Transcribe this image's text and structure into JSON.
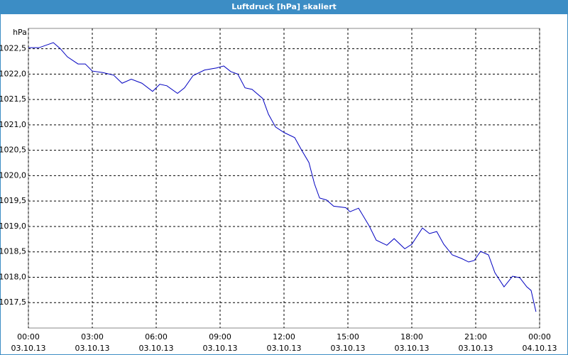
{
  "chart_data": {
    "type": "line",
    "title": "Luftdruck [hPa] skaliert",
    "y_unit": "hPa",
    "series": [
      {
        "color": "#0000c0",
        "x": [
          0,
          0.5,
          1.17,
          1.5,
          1.83,
          2.33,
          2.67,
          3,
          3.5,
          4,
          4.4,
          4.83,
          5.33,
          5.83,
          6.17,
          6.5,
          7,
          7.33,
          7.73,
          8.27,
          8.83,
          9.17,
          9.5,
          9.83,
          10.17,
          10.5,
          11,
          11.27,
          11.6,
          12,
          12.5,
          12.83,
          13.17,
          13.43,
          13.67,
          14,
          14.33,
          14.9,
          15.1,
          15.5,
          16,
          16.33,
          16.83,
          17.17,
          17.67,
          18,
          18.5,
          18.83,
          19.17,
          19.5,
          19.9,
          20.33,
          20.67,
          20.93,
          21.23,
          21.6,
          21.9,
          22.33,
          22.73,
          23.07,
          23.4,
          23.6,
          23.83
        ],
        "values": [
          1022.52,
          1022.52,
          1022.62,
          1022.5,
          1022.34,
          1022.2,
          1022.2,
          1022.06,
          1022.03,
          1021.98,
          1021.82,
          1021.9,
          1021.82,
          1021.66,
          1021.8,
          1021.77,
          1021.62,
          1021.73,
          1021.97,
          1022.08,
          1022.12,
          1022.16,
          1022.05,
          1022.0,
          1021.73,
          1021.7,
          1021.52,
          1021.21,
          1020.96,
          1020.85,
          1020.75,
          1020.5,
          1020.26,
          1019.84,
          1019.56,
          1019.52,
          1019.4,
          1019.37,
          1019.29,
          1019.36,
          1019.01,
          1018.73,
          1018.63,
          1018.76,
          1018.56,
          1018.65,
          1018.97,
          1018.86,
          1018.9,
          1018.65,
          1018.44,
          1018.37,
          1018.3,
          1018.33,
          1018.51,
          1018.44,
          1018.09,
          1017.81,
          1018.02,
          1017.99,
          1017.81,
          1017.74,
          1017.32
        ]
      }
    ],
    "xlim": [
      0,
      24
    ],
    "xticks": [
      {
        "value": 0,
        "label": [
          "00:00",
          "03.10.13"
        ]
      },
      {
        "value": 3,
        "label": [
          "03:00",
          "03.10.13"
        ]
      },
      {
        "value": 6,
        "label": [
          "06:00",
          "03.10.13"
        ]
      },
      {
        "value": 9,
        "label": [
          "09:00",
          "03.10.13"
        ]
      },
      {
        "value": 12,
        "label": [
          "12:00",
          "03.10.13"
        ]
      },
      {
        "value": 15,
        "label": [
          "15:00",
          "03.10.13"
        ]
      },
      {
        "value": 18,
        "label": [
          "18:00",
          "03.10.13"
        ]
      },
      {
        "value": 21,
        "label": [
          "21:00",
          "03.10.13"
        ]
      },
      {
        "value": 24,
        "label": [
          "00:00",
          "04.10.13"
        ]
      }
    ],
    "ylim": [
      1017.0,
      1022.9
    ],
    "yticks": [
      {
        "value": 1017.5,
        "label": "1017,5"
      },
      {
        "value": 1018,
        "label": "1018,0"
      },
      {
        "value": 1018.5,
        "label": "1018,5"
      },
      {
        "value": 1019,
        "label": "1019,0"
      },
      {
        "value": 1019.5,
        "label": "1019,5"
      },
      {
        "value": 1020,
        "label": "1020,0"
      },
      {
        "value": 1020.5,
        "label": "1020,5"
      },
      {
        "value": 1021,
        "label": "1021,0"
      },
      {
        "value": 1021.5,
        "label": "1021,5"
      },
      {
        "value": 1022,
        "label": "1022,0"
      },
      {
        "value": 1022.5,
        "label": "1022,5"
      }
    ],
    "grid": true
  }
}
